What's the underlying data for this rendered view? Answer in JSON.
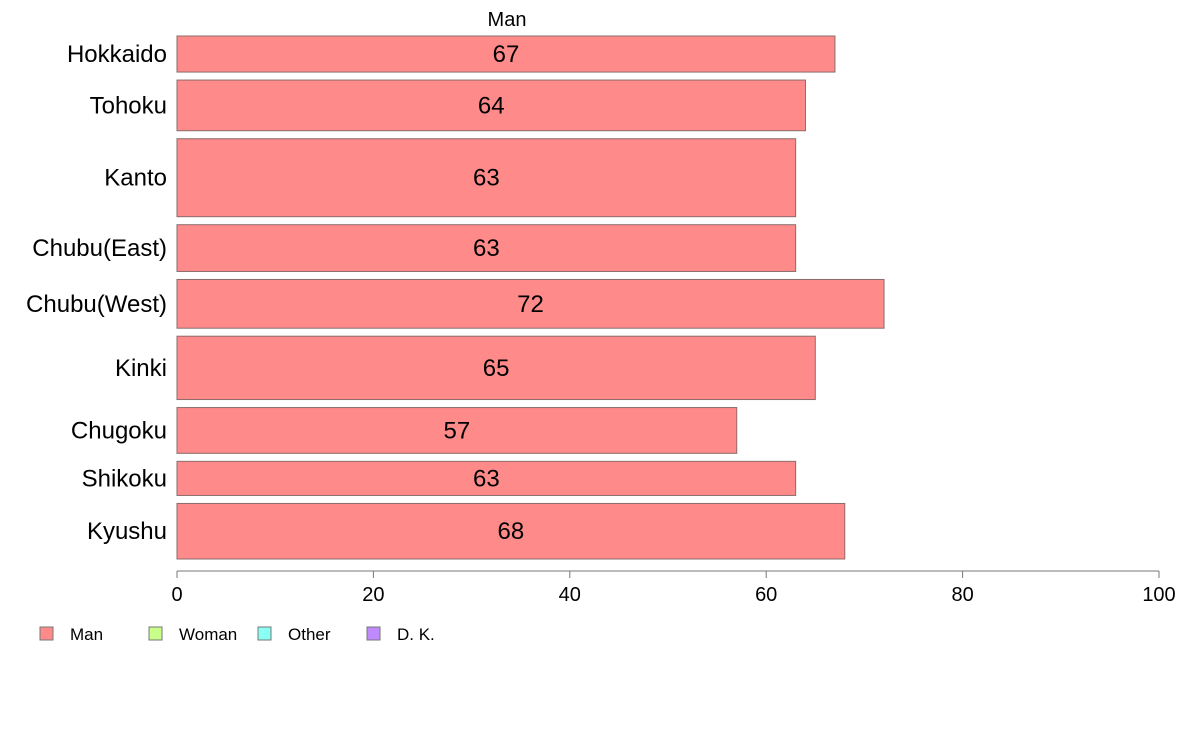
{
  "chart_data": {
    "type": "bar",
    "orientation": "horizontal",
    "title": "",
    "series_header": "Man",
    "categories": [
      "Hokkaido",
      "Tohoku",
      "Kanto",
      "Chubu(East)",
      "Chubu(West)",
      "Kinki",
      "Chugoku",
      "Shikoku",
      "Kyushu"
    ],
    "series": [
      {
        "name": "Man",
        "values": [
          67,
          64,
          63,
          63,
          72,
          65,
          57,
          63,
          68
        ],
        "color": "#ff8a8a"
      }
    ],
    "bar_weights": [
      37,
      52,
      80,
      48,
      50,
      65,
      47,
      35,
      57
    ],
    "value_axis": {
      "lim": [
        0,
        100
      ],
      "ticks": [
        0,
        20,
        40,
        60,
        80,
        100
      ]
    },
    "legend": {
      "placement": "bottom-left",
      "items": [
        {
          "label": "Man",
          "color": "#ff8a8a"
        },
        {
          "label": "Woman",
          "color": "#c8ff8a"
        },
        {
          "label": "Other",
          "color": "#8afff4"
        },
        {
          "label": "D. K.",
          "color": "#c08aff"
        }
      ]
    },
    "xlabel": "",
    "ylabel": "",
    "grid": false
  }
}
